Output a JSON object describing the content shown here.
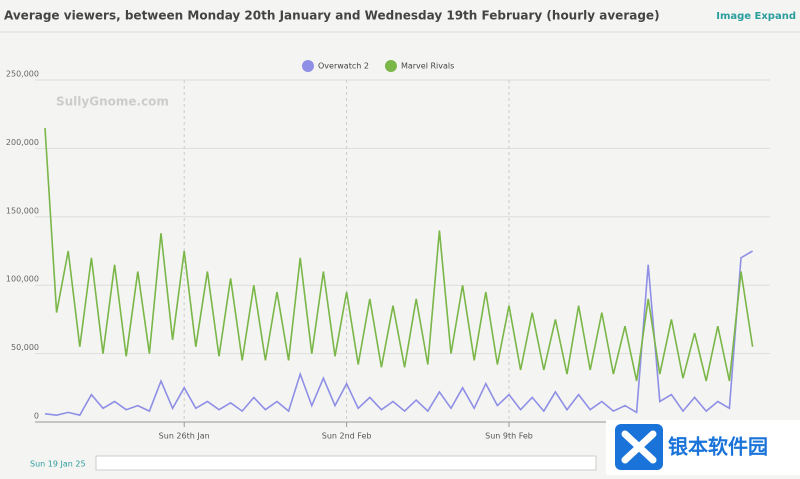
{
  "header": {
    "title": "Average viewers, between Monday 20th January and Wednesday 19th February (hourly average)",
    "link": "Image Expand"
  },
  "chart_data": {
    "type": "line",
    "watermark": "SullyGnome.com",
    "x": [
      "2025-01-20T00:00",
      "2025-01-20T12:00",
      "2025-01-21T00:00",
      "2025-01-21T12:00",
      "2025-01-22T00:00",
      "2025-01-22T12:00",
      "2025-01-23T00:00",
      "2025-01-23T12:00",
      "2025-01-24T00:00",
      "2025-01-24T12:00",
      "2025-01-25T00:00",
      "2025-01-25T12:00",
      "2025-01-26T00:00",
      "2025-01-26T12:00",
      "2025-01-27T00:00",
      "2025-01-27T12:00",
      "2025-01-28T00:00",
      "2025-01-28T12:00",
      "2025-01-29T00:00",
      "2025-01-29T12:00",
      "2025-01-30T00:00",
      "2025-01-30T12:00",
      "2025-01-31T00:00",
      "2025-01-31T12:00",
      "2025-02-01T00:00",
      "2025-02-01T12:00",
      "2025-02-02T00:00",
      "2025-02-02T12:00",
      "2025-02-03T00:00",
      "2025-02-03T12:00",
      "2025-02-04T00:00",
      "2025-02-04T12:00",
      "2025-02-05T00:00",
      "2025-02-05T12:00",
      "2025-02-06T00:00",
      "2025-02-06T12:00",
      "2025-02-07T00:00",
      "2025-02-07T12:00",
      "2025-02-08T00:00",
      "2025-02-08T12:00",
      "2025-02-09T00:00",
      "2025-02-09T12:00",
      "2025-02-10T00:00",
      "2025-02-10T12:00",
      "2025-02-11T00:00",
      "2025-02-11T12:00",
      "2025-02-12T00:00",
      "2025-02-12T12:00",
      "2025-02-13T00:00",
      "2025-02-13T12:00",
      "2025-02-14T00:00",
      "2025-02-14T12:00",
      "2025-02-15T00:00",
      "2025-02-15T12:00",
      "2025-02-16T00:00",
      "2025-02-16T12:00",
      "2025-02-17T00:00",
      "2025-02-17T12:00",
      "2025-02-18T00:00",
      "2025-02-18T12:00",
      "2025-02-19T00:00",
      "2025-02-19T12:00"
    ],
    "series": [
      {
        "name": "Overwatch 2",
        "color": "#8f8fe6",
        "values": [
          6000,
          5000,
          7000,
          5000,
          20000,
          10000,
          15000,
          9000,
          12000,
          8000,
          30000,
          10000,
          25000,
          10000,
          15000,
          9000,
          14000,
          8000,
          18000,
          9000,
          15000,
          8000,
          35000,
          12000,
          32000,
          12000,
          28000,
          10000,
          18000,
          9000,
          15000,
          8000,
          16000,
          8000,
          22000,
          10000,
          25000,
          10000,
          28000,
          12000,
          20000,
          9000,
          18000,
          8000,
          22000,
          9000,
          20000,
          9000,
          15000,
          8000,
          12000,
          7000,
          115000,
          15000,
          20000,
          8000,
          18000,
          8000,
          15000,
          10000,
          120000,
          125000
        ]
      },
      {
        "name": "Marvel Rivals",
        "color": "#7ab648",
        "values": [
          215000,
          80000,
          125000,
          55000,
          120000,
          50000,
          115000,
          48000,
          110000,
          50000,
          138000,
          60000,
          125000,
          55000,
          110000,
          48000,
          105000,
          45000,
          100000,
          45000,
          95000,
          45000,
          120000,
          50000,
          110000,
          48000,
          95000,
          42000,
          90000,
          40000,
          85000,
          40000,
          90000,
          42000,
          140000,
          50000,
          100000,
          45000,
          95000,
          42000,
          85000,
          38000,
          80000,
          38000,
          75000,
          35000,
          85000,
          38000,
          80000,
          35000,
          70000,
          30000,
          90000,
          35000,
          75000,
          32000,
          65000,
          30000,
          70000,
          30000,
          110000,
          55000
        ]
      }
    ],
    "xlim": [
      "2025-01-20T00:00",
      "2025-02-20T06:00"
    ],
    "xticks": [
      {
        "value": "2025-01-26T00:00",
        "label": "Sun 26th Jan"
      },
      {
        "value": "2025-02-02T00:00",
        "label": "Sun 2nd Feb"
      },
      {
        "value": "2025-02-09T00:00",
        "label": "Sun 9th Feb"
      }
    ],
    "ylim": [
      0,
      250000
    ],
    "yticks": [
      0,
      {
        "value": 50000,
        "label": "50,000"
      },
      {
        "value": 100000,
        "label": "100,000"
      },
      {
        "value": 150000,
        "label": "150,000"
      },
      {
        "value": 200000,
        "label": "200,000"
      },
      {
        "value": 250000,
        "label": "250,000"
      }
    ],
    "grid": true,
    "legend": "top"
  },
  "navigator": {
    "start_label": "Sun 19 Jan 25"
  },
  "overlay": {
    "logo_text": "银本软件园"
  }
}
